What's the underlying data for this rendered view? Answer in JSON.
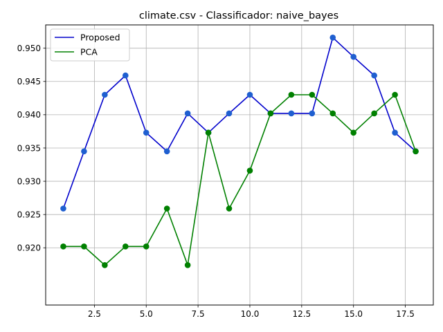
{
  "chart_data": {
    "type": "line",
    "title": "climate.csv - Classificador: naive_bayes",
    "xlabel": "",
    "ylabel": "",
    "xlim": [
      0.15,
      18.85
    ],
    "ylim": [
      0.9114,
      0.9535
    ],
    "xticks": [
      2.5,
      5.0,
      7.5,
      10.0,
      12.5,
      15.0,
      17.5
    ],
    "xtick_labels": [
      "2.5",
      "5.0",
      "7.5",
      "10.0",
      "12.5",
      "15.0",
      "17.5"
    ],
    "yticks": [
      0.92,
      0.925,
      0.93,
      0.935,
      0.94,
      0.945,
      0.95
    ],
    "ytick_labels": [
      "0.920",
      "0.925",
      "0.930",
      "0.935",
      "0.940",
      "0.945",
      "0.950"
    ],
    "grid": true,
    "legend_position": "top-left",
    "x": [
      1,
      2,
      3,
      4,
      5,
      6,
      7,
      8,
      9,
      10,
      11,
      12,
      13,
      14,
      15,
      16,
      17,
      18
    ],
    "series": [
      {
        "name": "Proposed",
        "color": "#0000cc",
        "marker_color": "#1f5fd0",
        "values": [
          0.9259,
          0.9345,
          0.943,
          0.9459,
          0.9373,
          0.9345,
          0.9402,
          0.9373,
          0.9402,
          0.943,
          0.9402,
          0.9402,
          0.9402,
          0.9516,
          0.9487,
          0.9459,
          0.9373,
          0.9345
        ]
      },
      {
        "name": "PCA",
        "color": "#008000",
        "marker_color": "#008000",
        "values": [
          0.9202,
          0.9202,
          0.9174,
          0.9202,
          0.9202,
          0.9259,
          0.9174,
          0.9373,
          0.9259,
          0.9316,
          0.9402,
          0.943,
          0.943,
          0.9402,
          0.9373,
          0.9402,
          0.943,
          0.9345
        ]
      }
    ]
  }
}
